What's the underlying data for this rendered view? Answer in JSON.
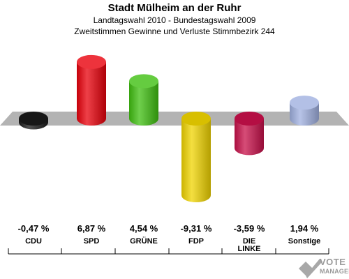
{
  "header": {
    "title": "Stadt Mülheim an der Ruhr",
    "subtitle1": "Landtagswahl 2010 - Bundestagswahl 2009",
    "subtitle2": "Zweitstimmen Gewinne und Verluste Stimmbezirk 244"
  },
  "chart_data": {
    "type": "bar",
    "categories": [
      "CDU",
      "SPD",
      "GRÜNE",
      "FDP",
      "DIE LINKE",
      "Sonstige"
    ],
    "values": [
      -0.47,
      6.87,
      4.54,
      -9.31,
      -3.59,
      1.94
    ],
    "value_labels": [
      "-0,47 %",
      "6,87 %",
      "4,54 %",
      "-9,31 %",
      "-3,59 %",
      "1,94 %"
    ],
    "colors": [
      "#1a1a1a",
      "#e8000b",
      "#3fbf10",
      "#f0d400",
      "#c8104a",
      "#a0b0e0"
    ],
    "ylim": [
      -9.31,
      6.87
    ],
    "grid": false,
    "legend": "none"
  },
  "logo": {
    "line1": "VOTE",
    "line2": "MANAGER"
  }
}
